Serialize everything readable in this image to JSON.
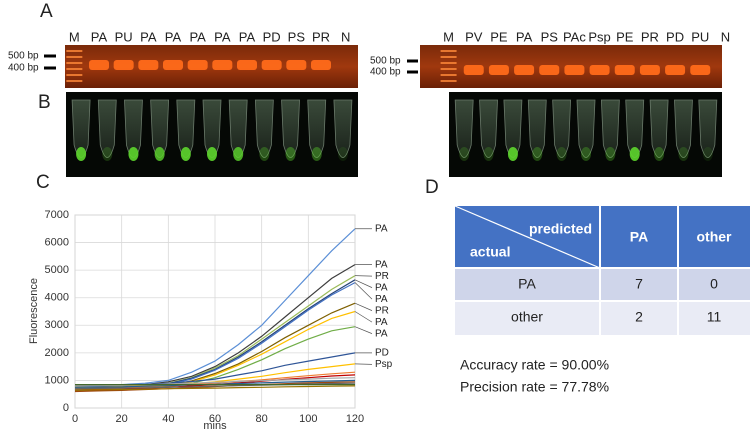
{
  "panel_labels": [
    "A",
    "B",
    "C",
    "D"
  ],
  "gel_left": {
    "lanes": [
      "M",
      "PA",
      "PU",
      "PA",
      "PA",
      "PA",
      "PA",
      "PA",
      "PD",
      "PS",
      "PR",
      "N"
    ],
    "markers": [
      "500 bp",
      "400 bp"
    ]
  },
  "gel_right": {
    "lanes": [
      "M",
      "PV",
      "PE",
      "PA",
      "PS",
      "PAc",
      "Psp",
      "PE",
      "PR",
      "PD",
      "PU",
      "N"
    ],
    "markers": [
      "500 bp",
      "400 bp"
    ]
  },
  "chart_data": {
    "type": "line",
    "xlabel": "mins",
    "ylabel": "Fluorescence",
    "x": [
      0,
      10,
      20,
      30,
      40,
      50,
      60,
      70,
      80,
      90,
      100,
      110,
      120
    ],
    "xlim": [
      0,
      120
    ],
    "xticks": [
      0,
      20,
      40,
      60,
      80,
      100,
      120
    ],
    "ylim": [
      0,
      7000
    ],
    "yticks": [
      0,
      1000,
      2000,
      3000,
      4000,
      5000,
      6000,
      7000
    ],
    "grid": true,
    "series": [
      {
        "name": "PA",
        "color": "#5b8fd6",
        "values": [
          800,
          820,
          850,
          900,
          1000,
          1300,
          1700,
          2300,
          3000,
          3900,
          4800,
          5700,
          6500
        ]
      },
      {
        "name": "PA",
        "color": "#3d3d3d",
        "values": [
          750,
          770,
          800,
          850,
          950,
          1150,
          1500,
          2000,
          2600,
          3300,
          4000,
          4700,
          5200
        ]
      },
      {
        "name": "PR",
        "color": "#9bbb59",
        "values": [
          700,
          720,
          750,
          800,
          900,
          1100,
          1450,
          1900,
          2500,
          3100,
          3700,
          4300,
          4800
        ]
      },
      {
        "name": "PA",
        "color": "#264478",
        "values": [
          700,
          720,
          750,
          790,
          880,
          1080,
          1400,
          1850,
          2400,
          3000,
          3600,
          4150,
          4650
        ]
      },
      {
        "name": "PA",
        "color": "#4472c4",
        "values": [
          680,
          700,
          730,
          770,
          860,
          1050,
          1370,
          1800,
          2350,
          2950,
          3550,
          4100,
          4550
        ]
      },
      {
        "name": "PR",
        "color": "#7f6000",
        "values": [
          650,
          670,
          700,
          740,
          820,
          980,
          1250,
          1600,
          2050,
          2550,
          3000,
          3450,
          3800
        ]
      },
      {
        "name": "PA",
        "color": "#ffc000",
        "values": [
          640,
          660,
          690,
          720,
          800,
          950,
          1200,
          1550,
          1950,
          2400,
          2850,
          3250,
          3500
        ]
      },
      {
        "name": "PA",
        "color": "#70ad47",
        "values": [
          620,
          640,
          670,
          700,
          770,
          900,
          1100,
          1400,
          1750,
          2150,
          2500,
          2800,
          2950
        ]
      },
      {
        "name": "PD",
        "color": "#2f5597",
        "values": [
          800,
          810,
          830,
          860,
          900,
          960,
          1050,
          1200,
          1350,
          1550,
          1700,
          1850,
          2000
        ]
      },
      {
        "name": "Psp",
        "color": "#ffc000",
        "values": [
          750,
          760,
          780,
          800,
          830,
          880,
          950,
          1050,
          1150,
          1280,
          1400,
          1500,
          1600
        ]
      },
      {
        "color": "#ed7d31",
        "values": [
          700,
          710,
          730,
          760,
          800,
          850,
          900,
          960,
          1020,
          1100,
          1170,
          1240,
          1300
        ]
      },
      {
        "color": "#c00000",
        "values": [
          650,
          660,
          680,
          710,
          750,
          800,
          850,
          910,
          970,
          1040,
          1100,
          1160,
          1200
        ]
      },
      {
        "color": "#a5a5a5",
        "values": [
          800,
          810,
          820,
          840,
          870,
          900,
          930,
          960,
          990,
          1020,
          1050,
          1080,
          1100
        ]
      },
      {
        "color": "#255e91",
        "values": [
          750,
          760,
          770,
          790,
          810,
          840,
          860,
          890,
          910,
          940,
          960,
          980,
          1000
        ]
      },
      {
        "color": "#9e480e",
        "values": [
          600,
          620,
          640,
          670,
          700,
          740,
          780,
          820,
          850,
          880,
          910,
          930,
          950
        ]
      },
      {
        "color": "#636363",
        "values": [
          700,
          710,
          720,
          730,
          750,
          770,
          790,
          810,
          830,
          850,
          870,
          890,
          900
        ]
      },
      {
        "color": "#43682b",
        "values": [
          850,
          850,
          850,
          850,
          850,
          850,
          850,
          850,
          850,
          850,
          850,
          850,
          850
        ]
      },
      {
        "color": "#997300",
        "values": [
          650,
          660,
          670,
          680,
          700,
          710,
          720,
          740,
          750,
          770,
          780,
          790,
          800
        ]
      }
    ]
  },
  "table": {
    "corner_top": "predicted",
    "corner_bottom": "actual",
    "columns": [
      "PA",
      "other"
    ],
    "rows": [
      [
        "PA",
        7,
        0
      ],
      [
        "other",
        2,
        11
      ]
    ]
  },
  "metrics": [
    "Accuracy rate = 90.00%",
    "Precision rate = 77.78%"
  ]
}
